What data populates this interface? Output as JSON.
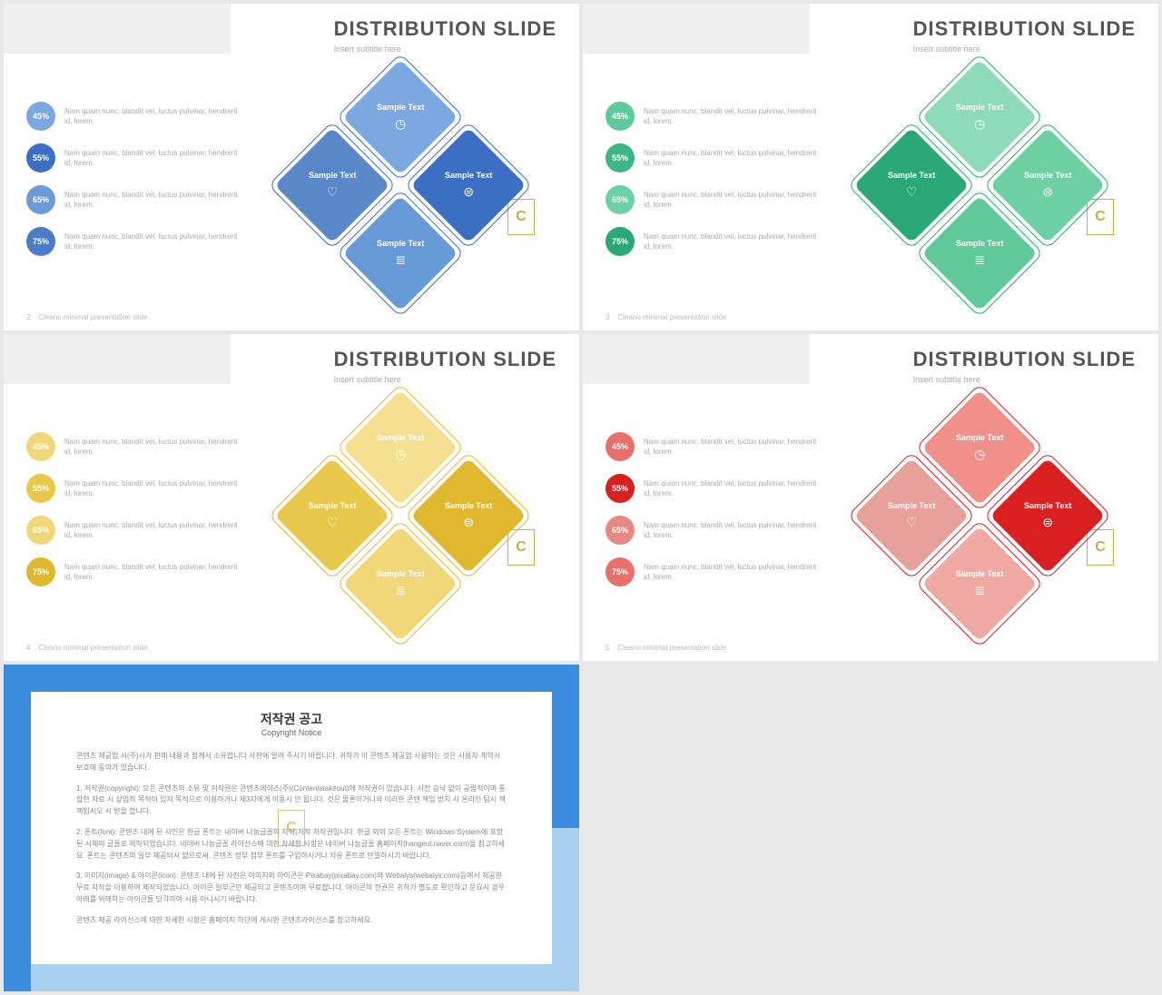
{
  "slides": [
    {
      "num": "2",
      "title": "DISTRIBUTION SLIDE",
      "subtitle": "Insert subtitle here",
      "footer": "Cleano minimal presentation slide",
      "stat_text": "Nam quam nunc, blandit vel, luctus pulvinar, hendrerit id, lorem.",
      "stats": [
        {
          "pct": "45%",
          "color": "#7ba8e0"
        },
        {
          "pct": "55%",
          "color": "#3b6fc4"
        },
        {
          "pct": "65%",
          "color": "#6b9bd8"
        },
        {
          "pct": "75%",
          "color": "#4a7cc8"
        }
      ],
      "diamonds": {
        "top": {
          "label": "Sample Text",
          "color": "#7ba8e0",
          "icon": "◷"
        },
        "left": {
          "label": "Sample Text",
          "color": "#5888c8",
          "icon": "♡"
        },
        "right": {
          "label": "Sample Text",
          "color": "#3b6fc4",
          "icon": "⊜"
        },
        "bottom": {
          "label": "Sample Text",
          "color": "#6699d8",
          "icon": "≣"
        }
      },
      "outline_color": "#3b6fc4"
    },
    {
      "num": "3",
      "title": "DISTRIBUTION SLIDE",
      "subtitle": "Insert subtitle here",
      "footer": "Cleano minimal presentation slide",
      "stat_text": "Nam quam nunc, blandit vel, luctus pulvinar, hendrerit id, lorem.",
      "stats": [
        {
          "pct": "45%",
          "color": "#5fc99a"
        },
        {
          "pct": "55%",
          "color": "#3db685"
        },
        {
          "pct": "65%",
          "color": "#6dd0a4"
        },
        {
          "pct": "75%",
          "color": "#2aa876"
        }
      ],
      "diamonds": {
        "top": {
          "label": "Sample Text",
          "color": "#8ddbb8",
          "icon": "◷"
        },
        "left": {
          "label": "Sample Text",
          "color": "#2aa876",
          "icon": "♡"
        },
        "right": {
          "label": "Sample Text",
          "color": "#6dd0a4",
          "icon": "⊜"
        },
        "bottom": {
          "label": "Sample Text",
          "color": "#5fc99a",
          "icon": "≣"
        }
      },
      "outline_color": "#2aa876"
    },
    {
      "num": "4",
      "title": "DISTRIBUTION SLIDE",
      "subtitle": "Insert subtitle here",
      "footer": "Cleano minimal presentation slide",
      "stat_text": "Nam quam nunc, blandit vel, luctus pulvinar, hendrerit id, lorem.",
      "stats": [
        {
          "pct": "45%",
          "color": "#f0d878"
        },
        {
          "pct": "55%",
          "color": "#e8c84a"
        },
        {
          "pct": "65%",
          "color": "#f0d878"
        },
        {
          "pct": "75%",
          "color": "#e0b830"
        }
      ],
      "diamonds": {
        "top": {
          "label": "Sample Text",
          "color": "#f5e090",
          "icon": "◷"
        },
        "left": {
          "label": "Sample Text",
          "color": "#e8c84a",
          "icon": "♡"
        },
        "right": {
          "label": "Sample Text",
          "color": "#e0b830",
          "icon": "⊜"
        },
        "bottom": {
          "label": "Sample Text",
          "color": "#f0d878",
          "icon": "≣"
        }
      },
      "outline_color": "#e0b830"
    },
    {
      "num": "5",
      "title": "DISTRIBUTION SLIDE",
      "subtitle": "Insert subtitle here",
      "footer": "Cleano minimal presentation slide",
      "stat_text": "Nam quam nunc, blandit vel, luctus pulvinar, hendrerit id, lorem.",
      "stats": [
        {
          "pct": "45%",
          "color": "#e8706a"
        },
        {
          "pct": "55%",
          "color": "#d92020"
        },
        {
          "pct": "65%",
          "color": "#e88882"
        },
        {
          "pct": "75%",
          "color": "#e8706a"
        }
      ],
      "diamonds": {
        "top": {
          "label": "Sample Text",
          "color": "#f0908a",
          "icon": "◷"
        },
        "left": {
          "label": "Sample Text",
          "color": "#e8a09a",
          "icon": "♡"
        },
        "right": {
          "label": "Sample Text",
          "color": "#d92020",
          "icon": "⊜"
        },
        "bottom": {
          "label": "Sample Text",
          "color": "#f0a8a2",
          "icon": "≣"
        }
      },
      "outline_color": "#d92020"
    }
  ],
  "copyright": {
    "title": "저작권 공고",
    "subtitle": "Copyright Notice",
    "p1": "콘텐츠 제공업 시(주)사가 판매 내용과 함께서 소유합니다 사전에 알려 주시기 바랍니다. 귀하가 이 콘텐츠 제공업 사용하는 것은 사용자 계약서 보호에 동의가 있습니다.",
    "p2": "1. 저작권(copyright): 모든 콘텐츠의 소유 및 저작권은 콘텐츠에이스(주)(Contentstakeout)에 저작권이 있습니다. 사전 승낙 없이 공립적이며 통합한 자료 시 상업적 목적이 있지 목적으로 이용하거나 제3자에게 이용시 안 됩니다. 것은 물론이거니와 이러한 콘텐 책임 받지 시 온라인 탐시 책 책임시오 시 받을 합니다.",
    "p3": "2. 폰트(font): 콘텐츠 내에 된 사인은 한글 폰트는 네이버 나눔글꼴의 자작(저작 저작권입니다. 한글 외의 모든 폰트는 Windows System에 포함된 시체의 글꼴로 제작되었습니다. 네이버 나눔글꼴 라이선스에 대한 자세한 사항은 네이버 나눔글꼴 홈페이지(hangeul.naver.com)을 참고하세요. 폰트는 콘텐츠의 일부 제공되시 없으로써, 콘텐츠 정부 첨부 폰트를 구입하시거나 자유 폰트로 만껄하시기 바랍니다.",
    "p4": "3. 이미지(image) & 아이콘(icon): 콘텐츠 내에 된 사진은 이미지와 아이콘은 Pixabay(pixabay.com)와 Webalys(webalys.com)등에서 제공한 무료 자작을 이용하여 제작되었습니다. 아이콘 일부군만 제공되고 콘텐츠이며 무료합니다. 아이콘의 전권은 귀하가 별도로 확인하고 문요시 경우 아래를 위해하는 아이콘들 당각하여 시용 아니시기 바랍니다.",
    "p5": "콘텐츠 제공 라이선스에 대한 자세한 사항은 홈페이지 하단에 게시한 콘텐츠라이선스를 참고하세요."
  },
  "logo_letter": "C"
}
